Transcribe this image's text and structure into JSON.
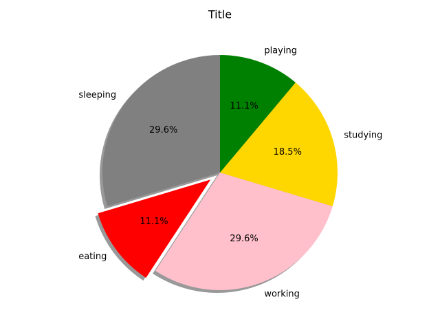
{
  "chart_data": {
    "type": "pie",
    "title": "Title",
    "categories": [
      "sleeping",
      "eating",
      "working",
      "studying",
      "playing"
    ],
    "values": [
      29.6,
      11.1,
      29.6,
      18.5,
      11.1
    ],
    "value_labels": [
      "29.6%",
      "11.1%",
      "29.6%",
      "18.5%",
      "11.1%"
    ],
    "colors": [
      "#808080",
      "#ff0000",
      "#ffc0cb",
      "#ffd700",
      "#008000"
    ],
    "explode": [
      0,
      0.1,
      0,
      0,
      0
    ],
    "startangle": 90,
    "shadow": true
  }
}
